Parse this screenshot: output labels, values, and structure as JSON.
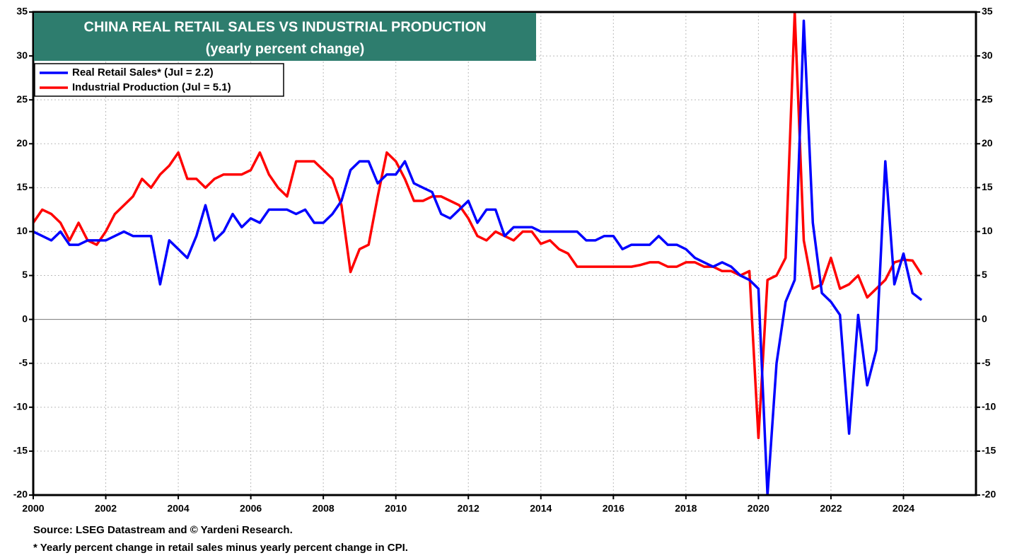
{
  "chart_data": {
    "type": "line",
    "title": "CHINA REAL RETAIL SALES VS INDUSTRIAL PRODUCTION",
    "subtitle": "(yearly percent change)",
    "notes": [
      "Source: LSEG Datastream and © Yardeni Research.",
      "* Yearly percent change in retail sales minus yearly percent change in CPI."
    ],
    "x": [
      2000,
      2000.25,
      2000.5,
      2000.75,
      2001,
      2001.25,
      2001.5,
      2001.75,
      2002,
      2002.25,
      2002.5,
      2002.75,
      2003,
      2003.25,
      2003.5,
      2003.75,
      2004,
      2004.25,
      2004.5,
      2004.75,
      2005,
      2005.25,
      2005.5,
      2005.75,
      2006,
      2006.25,
      2006.5,
      2006.75,
      2007,
      2007.25,
      2007.5,
      2007.75,
      2008,
      2008.25,
      2008.5,
      2008.75,
      2009,
      2009.25,
      2009.5,
      2009.75,
      2010,
      2010.25,
      2010.5,
      2010.75,
      2011,
      2011.25,
      2011.5,
      2011.75,
      2012,
      2012.25,
      2012.5,
      2012.75,
      2013,
      2013.25,
      2013.5,
      2013.75,
      2014,
      2014.25,
      2014.5,
      2014.75,
      2015,
      2015.25,
      2015.5,
      2015.75,
      2016,
      2016.25,
      2016.5,
      2016.75,
      2017,
      2017.25,
      2017.5,
      2017.75,
      2018,
      2018.25,
      2018.5,
      2018.75,
      2019,
      2019.25,
      2019.5,
      2019.75,
      2020,
      2020.25,
      2020.5,
      2020.75,
      2021,
      2021.25,
      2021.5,
      2021.75,
      2022,
      2022.25,
      2022.5,
      2022.75,
      2023,
      2023.25,
      2023.5,
      2023.75,
      2024,
      2024.25,
      2024.5
    ],
    "series": [
      {
        "name": "Real Retail Sales* (Jul = 2.2)",
        "color": "#0000ff",
        "values": [
          10,
          9.5,
          9,
          10,
          8.5,
          8.5,
          9,
          9,
          9,
          9.5,
          10,
          9.5,
          9.5,
          9.5,
          4,
          9,
          8,
          7,
          9.5,
          13,
          9,
          10,
          12,
          10.5,
          11.5,
          11,
          12.5,
          12.5,
          12.5,
          12,
          12.5,
          11,
          11,
          12,
          13.5,
          17,
          18,
          18,
          15.5,
          16.5,
          16.5,
          18,
          15.5,
          15,
          14.5,
          12,
          11.5,
          12.5,
          13.5,
          11,
          12.5,
          12.5,
          9.5,
          10.5,
          10.5,
          10.5,
          10,
          10,
          10,
          10,
          10,
          9,
          9,
          9.5,
          9.5,
          8,
          8.5,
          8.5,
          8.5,
          9.5,
          8.5,
          8.5,
          8,
          7,
          6.5,
          6,
          6.5,
          6,
          5,
          4.5,
          3.5,
          -20,
          -5,
          2,
          4.5,
          34,
          11,
          3,
          2,
          0.5,
          -13,
          0.5,
          -7.5,
          -3.5,
          18,
          4,
          7.5,
          3,
          2.2
        ]
      },
      {
        "name": "Industrial Production (Jul = 5.1)",
        "color": "#ff0000",
        "values": [
          11,
          12.5,
          12,
          11,
          9,
          11,
          9,
          8.5,
          10,
          12,
          13,
          14,
          16,
          15,
          16.5,
          17.5,
          19,
          16,
          16,
          15,
          16,
          16.5,
          16.5,
          16.5,
          17,
          19,
          16.5,
          15,
          14,
          18,
          18,
          18,
          17,
          16,
          13,
          5.4,
          8,
          8.5,
          14,
          19,
          18,
          16,
          13.5,
          13.5,
          14,
          14,
          13.5,
          13,
          11.5,
          9.5,
          9,
          10,
          9.5,
          9,
          10,
          10,
          8.6,
          9,
          8,
          7.5,
          6,
          6,
          6,
          6,
          6,
          6,
          6,
          6.2,
          6.5,
          6.5,
          6,
          6,
          6.5,
          6.5,
          6,
          6,
          5.5,
          5.5,
          5,
          5.5,
          -13.5,
          4.5,
          5,
          7,
          35,
          9,
          3.5,
          4,
          7,
          3.5,
          4,
          5,
          2.5,
          3.5,
          4.5,
          6.5,
          6.8,
          6.7,
          5.1
        ]
      }
    ],
    "xlim": [
      2000,
      2026
    ],
    "xticks": [
      2000,
      2002,
      2004,
      2006,
      2008,
      2010,
      2012,
      2014,
      2016,
      2018,
      2020,
      2022,
      2024
    ],
    "ylim": [
      -20,
      35
    ],
    "yticks": [
      -20,
      -15,
      -10,
      -5,
      0,
      5,
      10,
      15,
      20,
      25,
      30,
      35
    ],
    "grid": true
  }
}
